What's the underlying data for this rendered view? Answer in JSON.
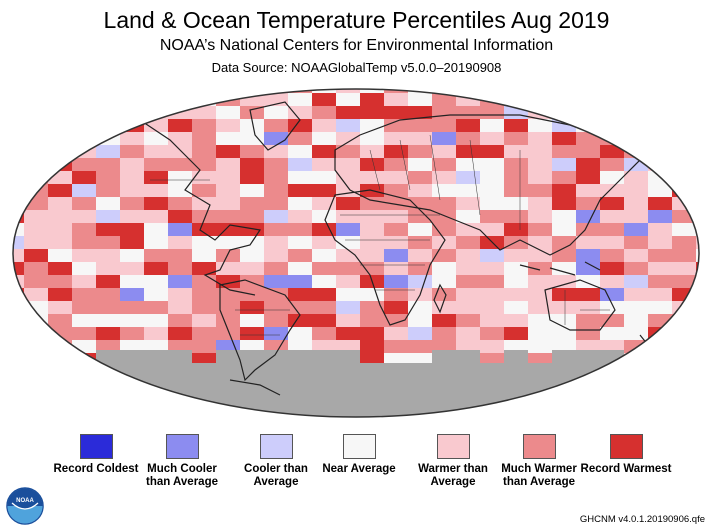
{
  "title": "Land & Ocean Temperature Percentiles Aug 2019",
  "subtitle": "NOAA’s National Centers for Environmental Information",
  "data_source": "Data Source: NOAAGlobalTemp v5.0.0–20190908",
  "footer_note": "GHCNM v4.0.1.20190906.qfe",
  "logo_text": "NOAA",
  "map_colors": {
    "missing": "#a8a8a8",
    "ocean_edge": "#333333"
  },
  "legend": [
    {
      "label": "Record Coldest",
      "color": "#2b2bd9"
    },
    {
      "label": "Much Cooler than Average",
      "color": "#8c8cf0"
    },
    {
      "label": "Cooler than Average",
      "color": "#cdcdfb"
    },
    {
      "label": "Near Average",
      "color": "#f7f7f7"
    },
    {
      "label": "Warmer than Average",
      "color": "#f9c9cf"
    },
    {
      "label": "Much Warmer than Average",
      "color": "#ec8a8c"
    },
    {
      "label": "Record Warmest",
      "color": "#d6302f"
    }
  ]
}
